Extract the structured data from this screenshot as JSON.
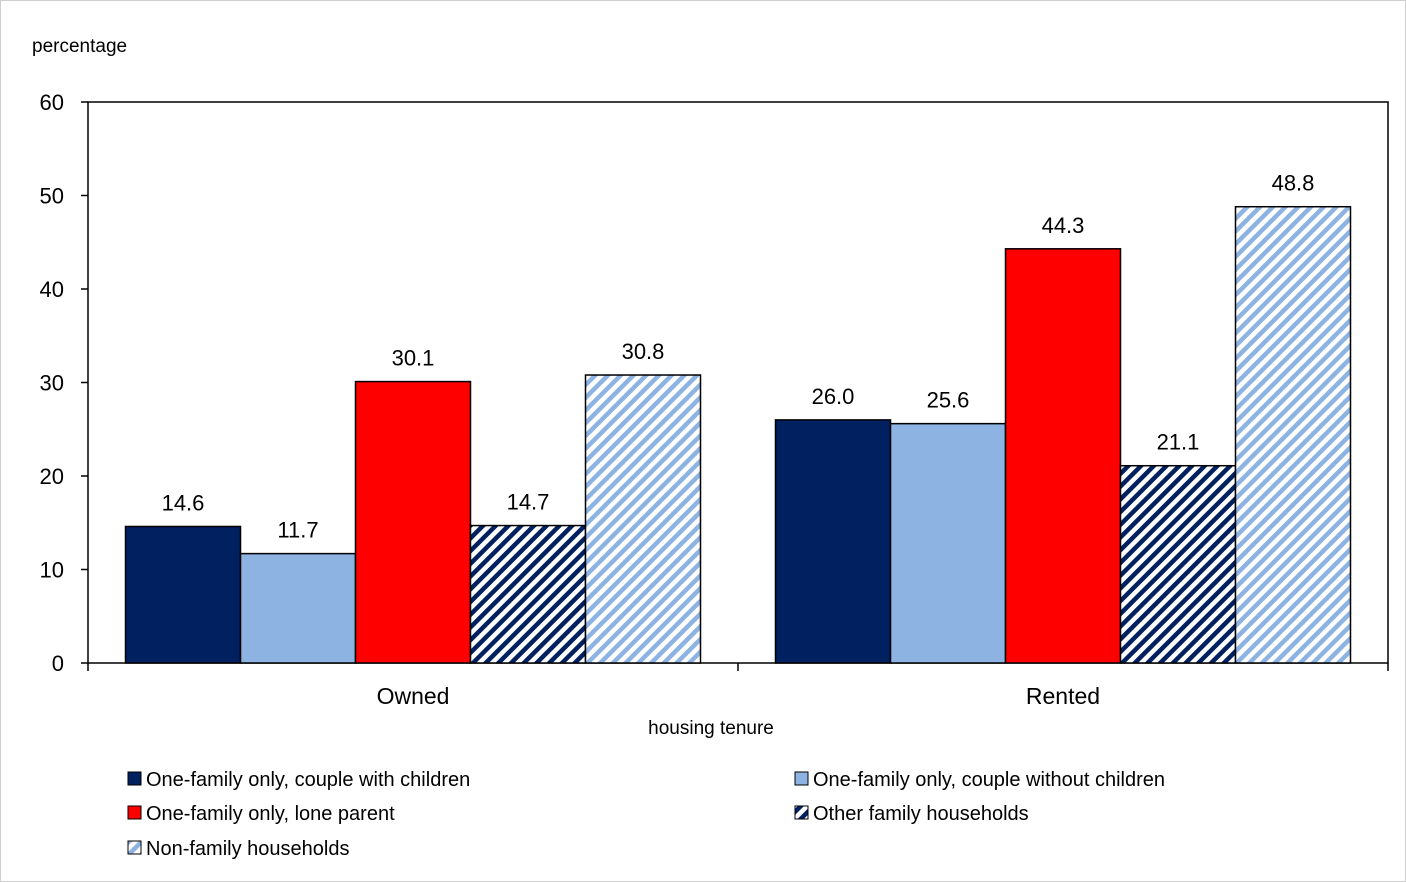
{
  "chart_data": {
    "type": "bar",
    "categories": [
      "Owned",
      "Rented"
    ],
    "series": [
      {
        "name": "One-family only, couple with children",
        "values": [
          14.6,
          26.0
        ],
        "labels": [
          "14.6",
          "26.0"
        ],
        "color": "#002060",
        "pattern": "solid"
      },
      {
        "name": "One-family only, couple without children",
        "values": [
          11.7,
          25.6
        ],
        "labels": [
          "11.7",
          "25.6"
        ],
        "color": "#8DB3E2",
        "pattern": "solid"
      },
      {
        "name": "One-family only, lone parent",
        "values": [
          30.1,
          44.3
        ],
        "labels": [
          "30.1",
          "44.3"
        ],
        "color": "#FF0000",
        "pattern": "solid"
      },
      {
        "name": "Other family households",
        "values": [
          14.7,
          21.1
        ],
        "labels": [
          "14.7",
          "21.1"
        ],
        "color": "#002060",
        "pattern": "diagonal"
      },
      {
        "name": "Non-family households",
        "values": [
          30.8,
          48.8
        ],
        "labels": [
          "30.8",
          "48.8"
        ],
        "color": "#8DB3E2",
        "pattern": "diagonal"
      }
    ],
    "ylabel": "percentage",
    "xlabel": "housing tenure",
    "ylim": [
      0,
      60
    ],
    "yticks": [
      "0",
      "10",
      "20",
      "30",
      "40",
      "50",
      "60"
    ],
    "grid": false,
    "legend_position": "bottom"
  }
}
